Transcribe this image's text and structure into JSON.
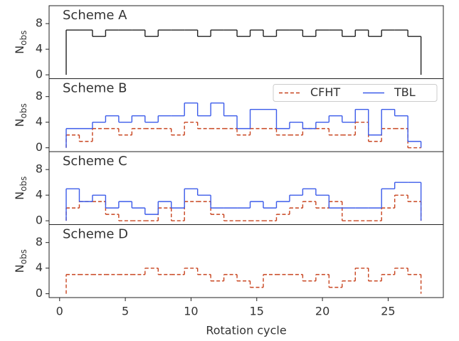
{
  "chart_data": [
    {
      "type": "step",
      "title": "Scheme A",
      "ylabel": "N",
      "ylabel_subscript": "obs",
      "x": [
        1,
        2,
        3,
        4,
        5,
        6,
        7,
        8,
        9,
        10,
        11,
        12,
        13,
        14,
        15,
        16,
        17,
        18,
        19,
        20,
        21,
        22,
        23,
        24,
        25,
        26,
        27
      ],
      "xlim": [
        -0.8,
        29.2
      ],
      "ylim": [
        -0.6,
        10.8
      ],
      "yticks": [
        0,
        4,
        8
      ],
      "series": [
        {
          "color": "#222222",
          "linestyle": "solid",
          "values": [
            7,
            7,
            6,
            7,
            7,
            7,
            6,
            7,
            7,
            7,
            6,
            7,
            7,
            6,
            7,
            6,
            7,
            7,
            6,
            7,
            7,
            6,
            7,
            6,
            7,
            7,
            6
          ]
        }
      ]
    },
    {
      "type": "step",
      "title": "Scheme B",
      "ylabel": "N",
      "ylabel_subscript": "obs",
      "x": [
        1,
        2,
        3,
        4,
        5,
        6,
        7,
        8,
        9,
        10,
        11,
        12,
        13,
        14,
        15,
        16,
        17,
        18,
        19,
        20,
        21,
        22,
        23,
        24,
        25,
        26,
        27
      ],
      "xlim": [
        -0.8,
        29.2
      ],
      "ylim": [
        -0.6,
        10.8
      ],
      "yticks": [
        0,
        4,
        8
      ],
      "legend": "upper right",
      "series": [
        {
          "name": "CFHT",
          "color": "#c8441f",
          "linestyle": "dashed",
          "values": [
            2,
            1,
            3,
            3,
            2,
            3,
            3,
            3,
            2,
            4,
            3,
            3,
            3,
            2,
            3,
            3,
            2,
            2,
            3,
            3,
            2,
            2,
            4,
            1,
            3,
            3,
            0
          ]
        },
        {
          "name": "TBL",
          "color": "#3b5bea",
          "linestyle": "solid",
          "values": [
            3,
            3,
            4,
            5,
            4,
            5,
            4,
            5,
            5,
            7,
            5,
            7,
            5,
            3,
            6,
            6,
            3,
            4,
            3,
            4,
            5,
            4,
            6,
            2,
            6,
            5,
            1
          ]
        }
      ]
    },
    {
      "type": "step",
      "title": "Scheme C",
      "ylabel": "N",
      "ylabel_subscript": "obs",
      "x": [
        1,
        2,
        3,
        4,
        5,
        6,
        7,
        8,
        9,
        10,
        11,
        12,
        13,
        14,
        15,
        16,
        17,
        18,
        19,
        20,
        21,
        22,
        23,
        24,
        25,
        26,
        27
      ],
      "xlim": [
        -0.8,
        29.2
      ],
      "ylim": [
        -0.6,
        10.8
      ],
      "yticks": [
        0,
        4,
        8
      ],
      "series": [
        {
          "color": "#c8441f",
          "linestyle": "dashed",
          "values": [
            2,
            3,
            3,
            1,
            0,
            0,
            0,
            2,
            0,
            3,
            3,
            1,
            0,
            0,
            0,
            0,
            1,
            2,
            3,
            2,
            3,
            0,
            0,
            0,
            2,
            4,
            3
          ]
        },
        {
          "color": "#3b5bea",
          "linestyle": "solid",
          "values": [
            5,
            3,
            4,
            2,
            3,
            2,
            1,
            3,
            2,
            5,
            4,
            2,
            2,
            2,
            3,
            2,
            3,
            4,
            5,
            4,
            2,
            2,
            2,
            2,
            5,
            6,
            6
          ]
        }
      ]
    },
    {
      "type": "step",
      "title": "Scheme D",
      "ylabel": "N",
      "ylabel_subscript": "obs",
      "xlabel": "Rotation cycle",
      "x": [
        1,
        2,
        3,
        4,
        5,
        6,
        7,
        8,
        9,
        10,
        11,
        12,
        13,
        14,
        15,
        16,
        17,
        18,
        19,
        20,
        21,
        22,
        23,
        24,
        25,
        26,
        27
      ],
      "xlim": [
        -0.8,
        29.2
      ],
      "ylim": [
        -0.6,
        10.8
      ],
      "yticks": [
        0,
        4,
        8
      ],
      "xticks": [
        0,
        5,
        10,
        15,
        20,
        25
      ],
      "series": [
        {
          "color": "#c8441f",
          "linestyle": "dashed",
          "values": [
            3,
            3,
            3,
            3,
            3,
            3,
            4,
            3,
            3,
            4,
            3,
            2,
            3,
            2,
            1,
            3,
            3,
            3,
            2,
            3,
            1,
            2,
            4,
            2,
            3,
            4,
            3
          ]
        }
      ]
    }
  ]
}
